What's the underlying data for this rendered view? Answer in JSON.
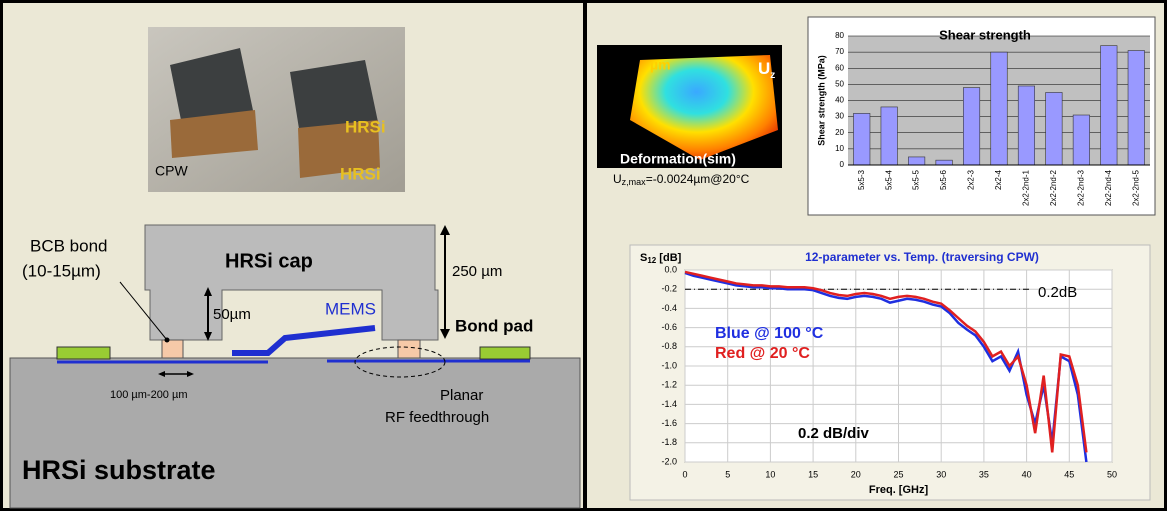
{
  "photo": {
    "label_cpw": "CPW",
    "label_top": "HRSi",
    "label_bottom": "HRSi"
  },
  "cross_section": {
    "bcb_line1": "BCB bond",
    "bcb_line2": "(10-15µm)",
    "cap": "HRSi cap",
    "cap_height": "250 µm",
    "gap": "50µm",
    "mems": "MEMS",
    "bond_pad": "Bond pad",
    "spacing": "100 µm-200 µm",
    "feed_line1": "Planar",
    "feed_line2": "RF feedthrough",
    "substrate": "HRSi substrate"
  },
  "simulation": {
    "unit": "µm",
    "axis_u": "U",
    "axis_z": "z",
    "title": "Deformation(sim)",
    "caption_u": "U",
    "caption_sub": "z,max",
    "caption_value": "=-0.0024µm@20°C"
  },
  "chart_data": [
    {
      "type": "bar",
      "title": "Shear strength",
      "y_label": "Shear strength (MPa)",
      "categories": [
        "5x5-3",
        "5x5-4",
        "5x5-5",
        "5x5-6",
        "2x2-3",
        "2x2-4",
        "2x2-2nd-1",
        "2x2-2nd-2",
        "2x2-2nd-3",
        "2x2-2nd-4",
        "2x2-2nd-5"
      ],
      "values": [
        32,
        36,
        5,
        3,
        48,
        70,
        49,
        45,
        31,
        74,
        71
      ],
      "color": "#9999ff",
      "ylim": [
        0,
        80
      ],
      "yticks": [
        0,
        10,
        20,
        30,
        40,
        50,
        60,
        70,
        80
      ],
      "grid": true
    },
    {
      "type": "line",
      "title": "12-parameter vs. Temp. (traversing CPW)",
      "y_label_s": "S",
      "y_label_sub": "12",
      "y_label_unit": " [dB]",
      "x_label": "Freq. [GHz]",
      "x": [
        0,
        1,
        2,
        3,
        4,
        5,
        6,
        7,
        8,
        9,
        10,
        11,
        12,
        13,
        14,
        15,
        16,
        17,
        18,
        19,
        20,
        21,
        22,
        23,
        24,
        25,
        26,
        27,
        28,
        29,
        30,
        31,
        32,
        33,
        34,
        35,
        36,
        37,
        38,
        39,
        40,
        41,
        42,
        43,
        44,
        45,
        46,
        47
      ],
      "series": [
        {
          "name": "Blue @ 100 °C",
          "color": "#1f2fe0",
          "values": [
            -0.03,
            -0.06,
            -0.08,
            -0.1,
            -0.12,
            -0.14,
            -0.16,
            -0.17,
            -0.18,
            -0.18,
            -0.19,
            -0.19,
            -0.2,
            -0.2,
            -0.2,
            -0.21,
            -0.24,
            -0.27,
            -0.29,
            -0.3,
            -0.28,
            -0.27,
            -0.28,
            -0.3,
            -0.34,
            -0.32,
            -0.3,
            -0.31,
            -0.33,
            -0.36,
            -0.38,
            -0.45,
            -0.55,
            -0.62,
            -0.68,
            -0.8,
            -0.95,
            -0.9,
            -1.05,
            -0.85,
            -1.3,
            -1.6,
            -1.2,
            -1.8,
            -0.9,
            -0.95,
            -1.3,
            -2.0
          ]
        },
        {
          "name": "Red @ 20 °C",
          "color": "#e02020",
          "values": [
            -0.02,
            -0.04,
            -0.06,
            -0.08,
            -0.1,
            -0.12,
            -0.14,
            -0.15,
            -0.16,
            -0.16,
            -0.17,
            -0.17,
            -0.18,
            -0.18,
            -0.18,
            -0.19,
            -0.21,
            -0.24,
            -0.26,
            -0.27,
            -0.25,
            -0.24,
            -0.25,
            -0.27,
            -0.3,
            -0.28,
            -0.27,
            -0.28,
            -0.3,
            -0.33,
            -0.35,
            -0.42,
            -0.5,
            -0.58,
            -0.64,
            -0.75,
            -0.9,
            -0.85,
            -1.0,
            -0.9,
            -1.2,
            -1.7,
            -1.1,
            -1.9,
            -0.88,
            -0.9,
            -1.2,
            -1.9
          ]
        }
      ],
      "annotations": {
        "threshold_label": "0.2dB",
        "scale": "0.2 dB/div"
      },
      "threshold": -0.2,
      "xlim": [
        0,
        50
      ],
      "xticks": [
        0,
        5,
        10,
        15,
        20,
        25,
        30,
        35,
        40,
        45,
        50
      ],
      "ylim": [
        -2,
        0
      ],
      "yticks": [
        {
          "value": 0,
          "label": "0.0"
        },
        -0.2,
        -0.4,
        -0.6,
        -0.8,
        {
          "value": -1,
          "label": "-1.0"
        },
        -1.2,
        -1.4,
        -1.6,
        -1.8,
        {
          "value": -2,
          "label": "-2.0"
        }
      ],
      "grid": true
    }
  ]
}
